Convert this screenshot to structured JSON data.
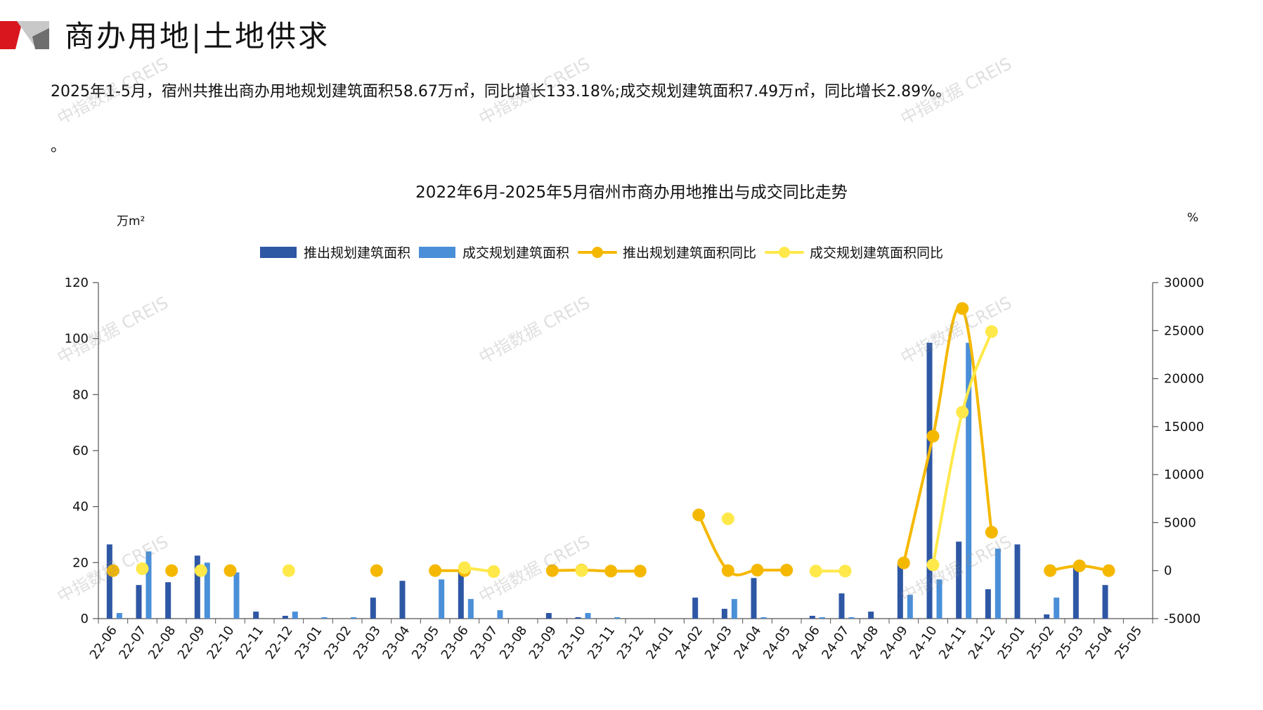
{
  "header": {
    "title": "商办用地|土地供求"
  },
  "summary": {
    "text": "2025年1-5月，宿州共推出商办用地规划建筑面积58.67万㎡，同比增长133.18%;成交规划建筑面积7.49万㎡，同比增长2.89%。",
    "trailing": "。"
  },
  "watermark": {
    "text": "中指数据 CREIS"
  },
  "colors": {
    "supply_bar": "#2E57A4",
    "deal_bar": "#4A8FD8",
    "supply_yoy": "#F5B800",
    "deal_yoy": "#FFE94A",
    "logo_red": "#D9161E",
    "logo_grey": "#8C8C8C"
  },
  "chart_data": {
    "type": "bar",
    "title": "2022年6月-2025年5月宿州市商办用地推出与成交同比走势",
    "y_left_unit": "万m²",
    "y_right_unit": "%",
    "y_left_ticks": [
      "120",
      "100",
      "80",
      "60",
      "40",
      "20",
      "0"
    ],
    "y_right_ticks": [
      "30000",
      "25000",
      "20000",
      "15000",
      "10000",
      "5000",
      "0",
      "-5000"
    ],
    "ylim_left": [
      0,
      120
    ],
    "ylim_right": [
      -5000,
      30000
    ],
    "categories": [
      "22-06",
      "22-07",
      "22-08",
      "22-09",
      "22-10",
      "22-11",
      "22-12",
      "23-01",
      "23-02",
      "23-03",
      "23-04",
      "23-05",
      "23-06",
      "23-07",
      "23-08",
      "23-09",
      "23-10",
      "23-11",
      "23-12",
      "24-01",
      "24-02",
      "24-03",
      "24-04",
      "24-05",
      "24-06",
      "24-07",
      "24-08",
      "24-09",
      "24-10",
      "24-11",
      "24-12",
      "25-01",
      "25-02",
      "25-03",
      "25-04",
      "25-05"
    ],
    "legend": [
      "推出规划建筑面积",
      "成交规划建筑面积",
      "推出规划建筑面积同比",
      "成交规划建筑面积同比"
    ],
    "series": [
      {
        "name": "推出规划建筑面积",
        "kind": "bar",
        "axis": "left",
        "values": [
          26.5,
          12,
          13,
          22.5,
          0,
          2.5,
          1,
          0,
          0,
          7.5,
          13.5,
          0,
          16.5,
          0,
          0,
          2,
          0.5,
          0,
          0,
          0,
          7.5,
          3.5,
          14.5,
          0,
          1,
          9,
          2.5,
          20,
          98.5,
          27.5,
          10.5,
          26.5,
          1.5,
          19,
          12,
          0
        ]
      },
      {
        "name": "成交规划建筑面积",
        "kind": "bar",
        "axis": "left",
        "values": [
          2,
          24,
          0,
          20,
          16.5,
          0,
          2.5,
          0.5,
          0.5,
          0,
          0,
          14,
          7,
          3,
          0,
          0,
          2,
          0.5,
          0,
          0,
          0,
          7,
          0.5,
          0,
          0.5,
          0.5,
          0,
          8.5,
          14,
          98.5,
          25,
          0,
          7.5,
          0,
          0,
          0
        ]
      },
      {
        "name": "推出规划建筑面积同比",
        "kind": "line",
        "axis": "right",
        "values": [
          0,
          null,
          0,
          null,
          0,
          null,
          null,
          null,
          null,
          0,
          null,
          0,
          0,
          null,
          null,
          0,
          50,
          -50,
          -50,
          null,
          5800,
          0,
          50,
          50,
          null,
          null,
          null,
          800,
          14000,
          27300,
          4000,
          null,
          0,
          500,
          0,
          null
        ]
      },
      {
        "name": "成交规划建筑面积同比",
        "kind": "line",
        "axis": "right",
        "values": [
          null,
          200,
          null,
          0,
          null,
          null,
          0,
          null,
          null,
          null,
          null,
          null,
          300,
          -100,
          null,
          null,
          0,
          null,
          null,
          null,
          null,
          5400,
          null,
          null,
          -50,
          -50,
          null,
          null,
          600,
          16500,
          24900,
          null,
          null,
          null,
          null,
          null
        ]
      }
    ]
  }
}
